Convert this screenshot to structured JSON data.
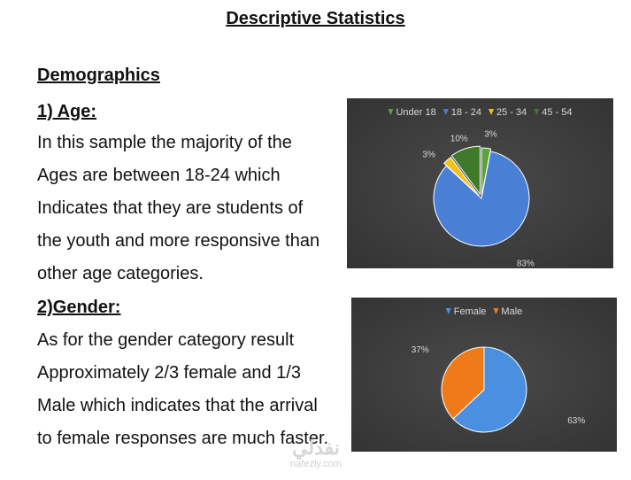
{
  "document": {
    "title": "Descriptive Statistics",
    "section_heading": "Demographics",
    "age": {
      "heading": "1) Age:",
      "lines": [
        "In this sample the majority of the",
        "Ages are between 18-24 which",
        "Indicates that they are students of",
        "the youth and more responsive than",
        "other age categories."
      ]
    },
    "gender": {
      "heading": "2)Gender:",
      "lines": [
        "As for the gender category result",
        "Approximately 2/3 female and 1/3",
        "Male which indicates that the arrival",
        "to female responses are much faster."
      ]
    }
  },
  "watermark": {
    "arabic": "نفدلي",
    "latin": "nafezly.com"
  },
  "chart_data": [
    {
      "type": "pie",
      "legend_position": "top",
      "categories": [
        "Under 18",
        "18 - 24",
        "25 - 34",
        "45 - 54"
      ],
      "values": [
        3,
        83,
        3,
        10
      ],
      "labels": [
        "3%",
        "83%",
        "3%",
        "10%"
      ],
      "colors": [
        "#5aa23c",
        "#4a7fd6",
        "#f2c21b",
        "#3f7a2a"
      ]
    },
    {
      "type": "pie",
      "legend_position": "top",
      "categories": [
        "Female",
        "Male"
      ],
      "values": [
        63,
        37
      ],
      "labels": [
        "63%",
        "37%"
      ],
      "colors": [
        "#4a8fe0",
        "#ef7a1a"
      ]
    }
  ]
}
